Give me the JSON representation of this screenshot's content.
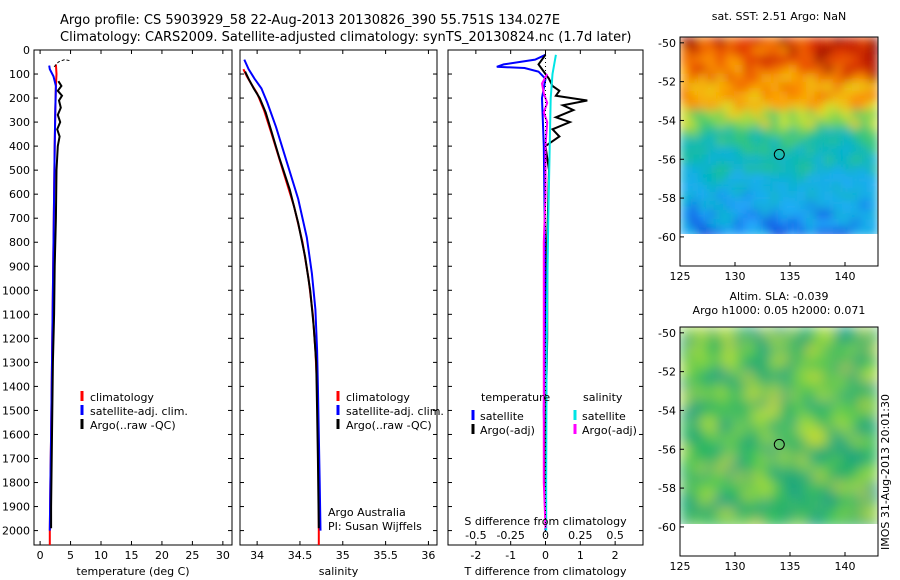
{
  "title_line1": "Argo profile: CS 5903929_58 22-Aug-2013 20130826_390 55.751S 134.027E",
  "title_line2": "Climatology: CARS2009. Satellite-adjusted climatology: synTS_20130824.nc (1.7d later)",
  "watermark": "IMOS 31-Aug-2013 20:01:30",
  "colors": {
    "climatology": "#ff0000",
    "satellite": "#0000ff",
    "argo": "#000000",
    "salinity_satellite": "#00e5e5",
    "salinity_argo": "#ff00ff"
  },
  "chart_data": [
    {
      "type": "line",
      "xlabel": "temperature (deg C)",
      "xlim": [
        -1,
        31.5
      ],
      "xticks": [
        0,
        5,
        10,
        15,
        20,
        25,
        30
      ],
      "ylim": [
        2060,
        0
      ],
      "yticks": [
        0,
        100,
        200,
        300,
        400,
        500,
        600,
        700,
        800,
        900,
        1000,
        1100,
        1200,
        1300,
        1400,
        1500,
        1600,
        1700,
        1800,
        1900,
        2000
      ],
      "legend": [
        "climatology",
        "satellite-adj. clim.",
        "Argo(..raw -QC)"
      ],
      "legend_placement": "lower-middle",
      "series": [
        {
          "name": "climatology",
          "color": "#ff0000",
          "points": [
            [
              2.6,
              60
            ],
            [
              2.7,
              100
            ],
            [
              2.6,
              150
            ],
            [
              2.5,
              250
            ],
            [
              2.4,
              400
            ],
            [
              2.3,
              600
            ],
            [
              2.2,
              800
            ],
            [
              2.1,
              1000
            ],
            [
              2.0,
              1200
            ],
            [
              1.9,
              1400
            ],
            [
              1.8,
              1600
            ],
            [
              1.7,
              1800
            ],
            [
              1.6,
              2000
            ],
            [
              1.6,
              2060
            ]
          ]
        },
        {
          "name": "satellite-adj. clim.",
          "color": "#0000ff",
          "points": [
            [
              1.5,
              65
            ],
            [
              1.6,
              80
            ],
            [
              2.2,
              110
            ],
            [
              2.6,
              150
            ],
            [
              2.5,
              250
            ],
            [
              2.4,
              400
            ],
            [
              2.3,
              600
            ],
            [
              2.2,
              800
            ],
            [
              2.1,
              1000
            ],
            [
              2.0,
              1200
            ],
            [
              1.9,
              1400
            ],
            [
              1.8,
              1600
            ],
            [
              1.7,
              1800
            ],
            [
              1.6,
              2000
            ]
          ]
        },
        {
          "name": "Argo(..raw -QC)",
          "color": "#000000",
          "points": [
            [
              3.0,
              130
            ],
            [
              3.5,
              150
            ],
            [
              2.9,
              170
            ],
            [
              3.6,
              190
            ],
            [
              3.1,
              210
            ],
            [
              3.4,
              240
            ],
            [
              2.9,
              270
            ],
            [
              3.3,
              300
            ],
            [
              2.8,
              330
            ],
            [
              3.2,
              360
            ],
            [
              2.9,
              400
            ],
            [
              2.7,
              500
            ],
            [
              2.6,
              700
            ],
            [
              2.4,
              900
            ],
            [
              2.3,
              1100
            ],
            [
              2.1,
              1300
            ],
            [
              2.0,
              1500
            ],
            [
              1.9,
              1700
            ],
            [
              1.8,
              1900
            ],
            [
              1.8,
              1990
            ]
          ]
        },
        {
          "name": "",
          "color": "#000000",
          "style": "dashed",
          "points": [
            [
              2.3,
              70
            ],
            [
              3.0,
              50
            ],
            [
              4.0,
              40
            ],
            [
              5.0,
              45
            ]
          ]
        }
      ]
    },
    {
      "type": "line",
      "xlabel": "salinity",
      "xlim": [
        33.8,
        36.1
      ],
      "xticks": [
        34,
        34.5,
        35,
        35.5,
        36
      ],
      "xticklabels": [
        "34",
        "34.5",
        "35",
        "35.5",
        "36"
      ],
      "ylim": [
        2060,
        0
      ],
      "legend": [
        "climatology",
        "satellite-adj. clim.",
        "Argo(..raw -QC)"
      ],
      "legend_placement": "lower-right",
      "annotations": [
        "Argo Australia",
        "PI: Susan Wijffels"
      ],
      "series": [
        {
          "name": "climatology",
          "color": "#ff0000",
          "points": [
            [
              33.84,
              80
            ],
            [
              33.88,
              110
            ],
            [
              33.93,
              140
            ],
            [
              34.0,
              180
            ],
            [
              34.08,
              250
            ],
            [
              34.17,
              350
            ],
            [
              34.3,
              500
            ],
            [
              34.43,
              650
            ],
            [
              34.53,
              800
            ],
            [
              34.6,
              950
            ],
            [
              34.65,
              1100
            ],
            [
              34.68,
              1250
            ],
            [
              34.7,
              1400
            ],
            [
              34.71,
              1600
            ],
            [
              34.72,
              1800
            ],
            [
              34.72,
              2060
            ]
          ]
        },
        {
          "name": "satellite-adj. clim.",
          "color": "#0000ff",
          "points": [
            [
              33.85,
              40
            ],
            [
              33.9,
              80
            ],
            [
              33.97,
              120
            ],
            [
              34.05,
              160
            ],
            [
              34.12,
              220
            ],
            [
              34.22,
              320
            ],
            [
              34.35,
              470
            ],
            [
              34.48,
              620
            ],
            [
              34.58,
              780
            ],
            [
              34.64,
              930
            ],
            [
              34.68,
              1080
            ],
            [
              34.7,
              1250
            ],
            [
              34.71,
              1400
            ],
            [
              34.72,
              1600
            ],
            [
              34.73,
              1800
            ],
            [
              34.74,
              2000
            ]
          ]
        },
        {
          "name": "Argo(..raw -QC)",
          "color": "#000000",
          "points": [
            [
              33.86,
              90
            ],
            [
              33.9,
              120
            ],
            [
              33.96,
              160
            ],
            [
              34.03,
              200
            ],
            [
              34.1,
              260
            ],
            [
              34.16,
              330
            ],
            [
              34.26,
              450
            ],
            [
              34.38,
              580
            ],
            [
              34.48,
              720
            ],
            [
              34.56,
              860
            ],
            [
              34.62,
              1000
            ],
            [
              34.66,
              1150
            ],
            [
              34.69,
              1300
            ],
            [
              34.7,
              1500
            ],
            [
              34.71,
              1700
            ],
            [
              34.72,
              1990
            ]
          ]
        }
      ]
    },
    {
      "type": "line",
      "xlabel": "T difference from climatology",
      "xlim": [
        -2.8,
        2.8
      ],
      "xticks": [
        -2,
        -1,
        0,
        1,
        2
      ],
      "secondary_xlabel": "S difference from climatology",
      "secondary_xticks": [
        -0.5,
        -0.25,
        0,
        0.25,
        0.5
      ],
      "secondary_xticklabels": [
        "-0.5",
        "-0.25",
        "0",
        "0.25",
        "0.5"
      ],
      "ylim": [
        2060,
        0
      ],
      "legend_groups": [
        {
          "title": "temperature",
          "entries": [
            "satellite",
            "Argo(-adj)"
          ]
        },
        {
          "title": "salinity",
          "entries": [
            "satellite",
            "Argo(-adj)"
          ]
        }
      ],
      "legend_placement": "lower-middle",
      "series": [
        {
          "name": "temperature satellite",
          "color": "#0000ff",
          "points": [
            [
              0,
              20
            ],
            [
              -0.3,
              40
            ],
            [
              -1.2,
              60
            ],
            [
              -1.4,
              70
            ],
            [
              -0.6,
              75
            ],
            [
              -0.2,
              90
            ],
            [
              0,
              120
            ],
            [
              -0.1,
              200
            ],
            [
              -0.05,
              400
            ],
            [
              0,
              1000
            ],
            [
              -0.05,
              1500
            ],
            [
              0,
              1900
            ],
            [
              0,
              2000
            ]
          ]
        },
        {
          "name": "temperature Argo(-adj)",
          "color": "#000000",
          "points": [
            [
              0,
              20
            ],
            [
              -0.2,
              60
            ],
            [
              0.1,
              120
            ],
            [
              0.2,
              150
            ],
            [
              0.4,
              170
            ],
            [
              0.3,
              190
            ],
            [
              1.2,
              210
            ],
            [
              0.5,
              230
            ],
            [
              0.8,
              250
            ],
            [
              0.3,
              280
            ],
            [
              0.7,
              300
            ],
            [
              0.2,
              330
            ],
            [
              0.4,
              360
            ],
            [
              0,
              400
            ],
            [
              0.1,
              500
            ],
            [
              0.05,
              800
            ],
            [
              0.05,
              1200
            ],
            [
              0,
              1600
            ],
            [
              0,
              1990
            ]
          ]
        },
        {
          "name": "salinity satellite",
          "color": "#00e5e5",
          "points": [
            [
              0.3,
              20
            ],
            [
              0.25,
              60
            ],
            [
              0.2,
              100
            ],
            [
              0.15,
              200
            ],
            [
              0.12,
              400
            ],
            [
              0.08,
              700
            ],
            [
              0.05,
              1000
            ],
            [
              0.03,
              1400
            ],
            [
              0.02,
              1800
            ],
            [
              0.02,
              2000
            ]
          ]
        },
        {
          "name": "salinity Argo(-adj)",
          "color": "#ff00ff",
          "points": [
            [
              0.05,
              100
            ],
            [
              -0.1,
              140
            ],
            [
              -0.05,
              180
            ],
            [
              0.05,
              220
            ],
            [
              -0.05,
              260
            ],
            [
              0.05,
              300
            ],
            [
              0,
              400
            ],
            [
              0,
              600
            ],
            [
              -0.05,
              800
            ],
            [
              -0.05,
              1000
            ],
            [
              -0.05,
              1400
            ],
            [
              -0.05,
              1800
            ],
            [
              0,
              1990
            ]
          ]
        }
      ]
    },
    {
      "type": "heatmap",
      "title": "sat. SST: 2.51  Argo: NaN",
      "xlim": [
        125,
        143
      ],
      "ylim": [
        -61.5,
        -49.7
      ],
      "xticks": [
        125,
        130,
        135,
        140
      ],
      "yticks": [
        -50,
        -52,
        -54,
        -56,
        -58,
        -60
      ],
      "xticklabels": [
        "125",
        "130",
        "135",
        "140"
      ],
      "yticklabels": [
        "-50",
        "-52",
        "-54",
        "-56",
        "-58",
        "-60"
      ],
      "data_ylim": [
        -60,
        -49.7
      ],
      "marker": {
        "lon": 134.027,
        "lat": -55.751
      }
    },
    {
      "type": "heatmap",
      "title": "Altim. SLA: -0.039",
      "subtitle": "Argo h1000: 0.05 h2000: 0.071",
      "xlim": [
        125,
        143
      ],
      "ylim": [
        -61.5,
        -49.7
      ],
      "xticks": [
        125,
        130,
        135,
        140
      ],
      "yticks": [
        -50,
        -52,
        -54,
        -56,
        -58,
        -60
      ],
      "xticklabels": [
        "125",
        "130",
        "135",
        "140"
      ],
      "yticklabels": [
        "-50",
        "-52",
        "-54",
        "-56",
        "-58",
        "-60"
      ],
      "data_ylim": [
        -60,
        -49.7
      ],
      "marker": {
        "lon": 134.027,
        "lat": -55.751
      }
    }
  ]
}
